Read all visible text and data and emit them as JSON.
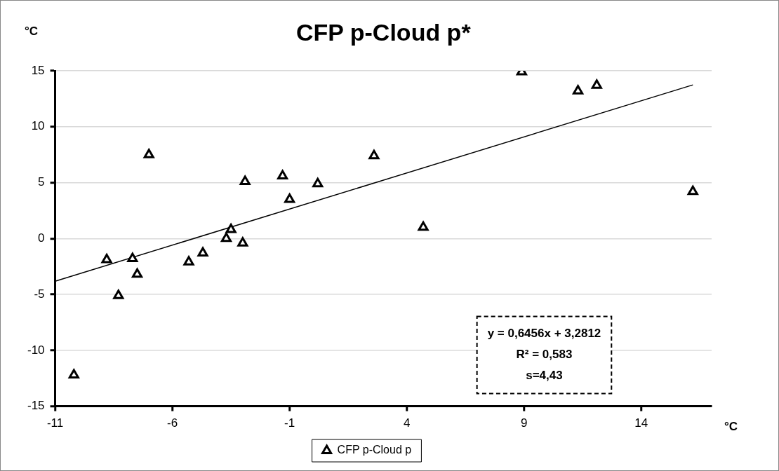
{
  "chart_data": {
    "type": "scatter",
    "title": "CFP p-Cloud p*",
    "xlabel": "°C",
    "ylabel": "°C",
    "xlim": [
      -11,
      17
    ],
    "xticks": [
      -11,
      -6,
      -1,
      4,
      9,
      14
    ],
    "ylim": [
      -15,
      15
    ],
    "yticks": [
      -15,
      -10,
      -5,
      0,
      5,
      10,
      15
    ],
    "grid": "y",
    "legend": "bottom",
    "marker": "triangle",
    "annotations": [
      "y = 0,6456x + 3,2812",
      "R² = 0,583",
      "s=4,43"
    ],
    "series": [
      {
        "name": "CFP p-Cloud p",
        "color": "#000000",
        "x": [
          -8.8,
          -7.7,
          -7.5,
          -8.3,
          -7.0,
          -5.3,
          -4.7,
          -3.7,
          -3.5,
          -3.0,
          -2.9,
          -1.3,
          -1.0,
          0.2,
          2.6,
          4.7,
          8.9,
          11.3,
          12.1,
          16.2,
          -10.2
        ],
        "values": [
          -1.9,
          -1.8,
          -3.2,
          -5.1,
          7.5,
          -2.1,
          -1.3,
          0.0,
          0.8,
          -0.4,
          5.1,
          5.6,
          3.5,
          4.9,
          7.4,
          1.0,
          14.9,
          13.2,
          13.7,
          4.2,
          -12.2
        ]
      },
      {
        "type": "line",
        "color": "#000000",
        "marker": "none",
        "x": [
          -11,
          16.2
        ],
        "values": [
          -3.82,
          13.74
        ]
      }
    ]
  }
}
